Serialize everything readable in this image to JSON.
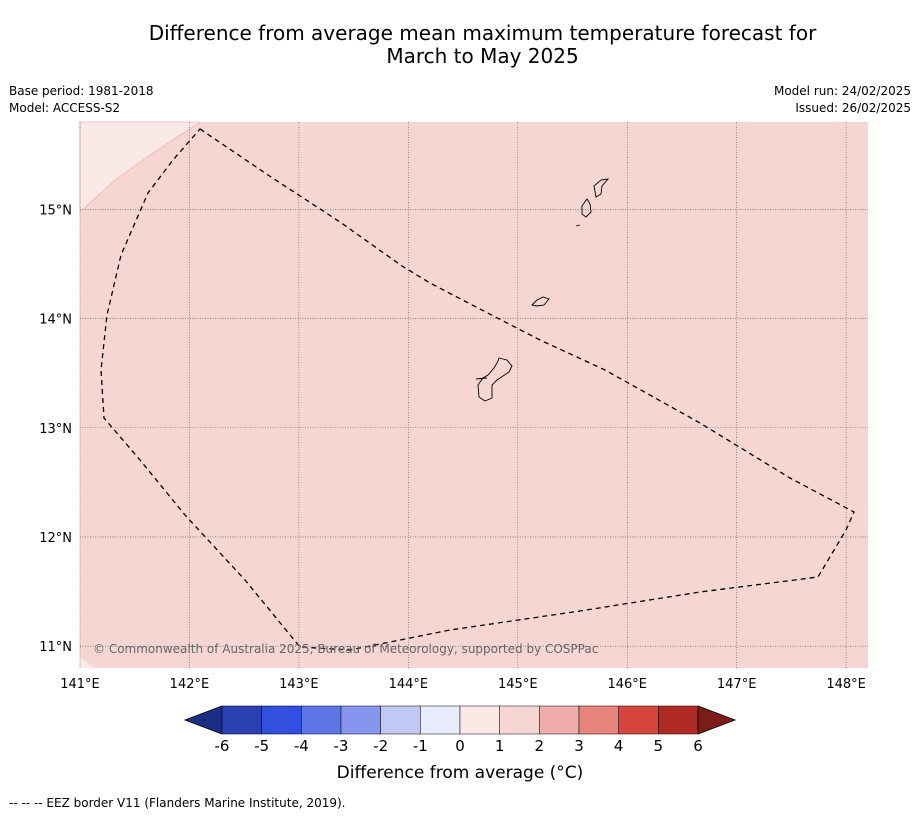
{
  "header": {
    "title_line1": "Difference from average mean maximum temperature forecast for",
    "title_line2": "March to May 2025",
    "base_period": "Base period: 1981-2018",
    "model": "Model: ACCESS-S2",
    "model_run": "Model run: 24/02/2025",
    "issued": "Issued: 26/02/2025"
  },
  "map": {
    "lon_range": [
      141.0,
      148.2
    ],
    "lat_range": [
      10.8,
      15.8
    ],
    "lon_ticks": [
      141,
      142,
      143,
      144,
      145,
      146,
      147,
      148
    ],
    "lon_tick_labels": [
      "141°E",
      "142°E",
      "143°E",
      "144°E",
      "145°E",
      "146°E",
      "147°E",
      "148°E"
    ],
    "lat_ticks": [
      11,
      12,
      13,
      14,
      15
    ],
    "lat_tick_labels": [
      "11°N",
      "12°N",
      "13°N",
      "14°N",
      "15°N"
    ],
    "fill_color": "#f6d6d3",
    "light_fill_color": "#fbe9e7",
    "copyright": "© Commonwealth of Australia 2025, Bureau of Meteorology, supported by COSPPac"
  },
  "colorbar": {
    "ticks": [
      "-6",
      "-5",
      "-4",
      "-3",
      "-2",
      "-1",
      "0",
      "1",
      "2",
      "3",
      "4",
      "5",
      "6"
    ],
    "colors": [
      "#2a3fb2",
      "#3150e0",
      "#5d76e6",
      "#8596ec",
      "#c1c8f3",
      "#e8ebfb",
      "#fbe9e7",
      "#f6d6d3",
      "#efadaa",
      "#e8837e",
      "#d8453e",
      "#ae2a22"
    ],
    "low_extend_color": "#1d2d84",
    "high_extend_color": "#7c1c18",
    "label": "Difference from average (°C)"
  },
  "footnote": "-- -- -- EEZ border V11 (Flanders Marine Institute, 2019)."
}
